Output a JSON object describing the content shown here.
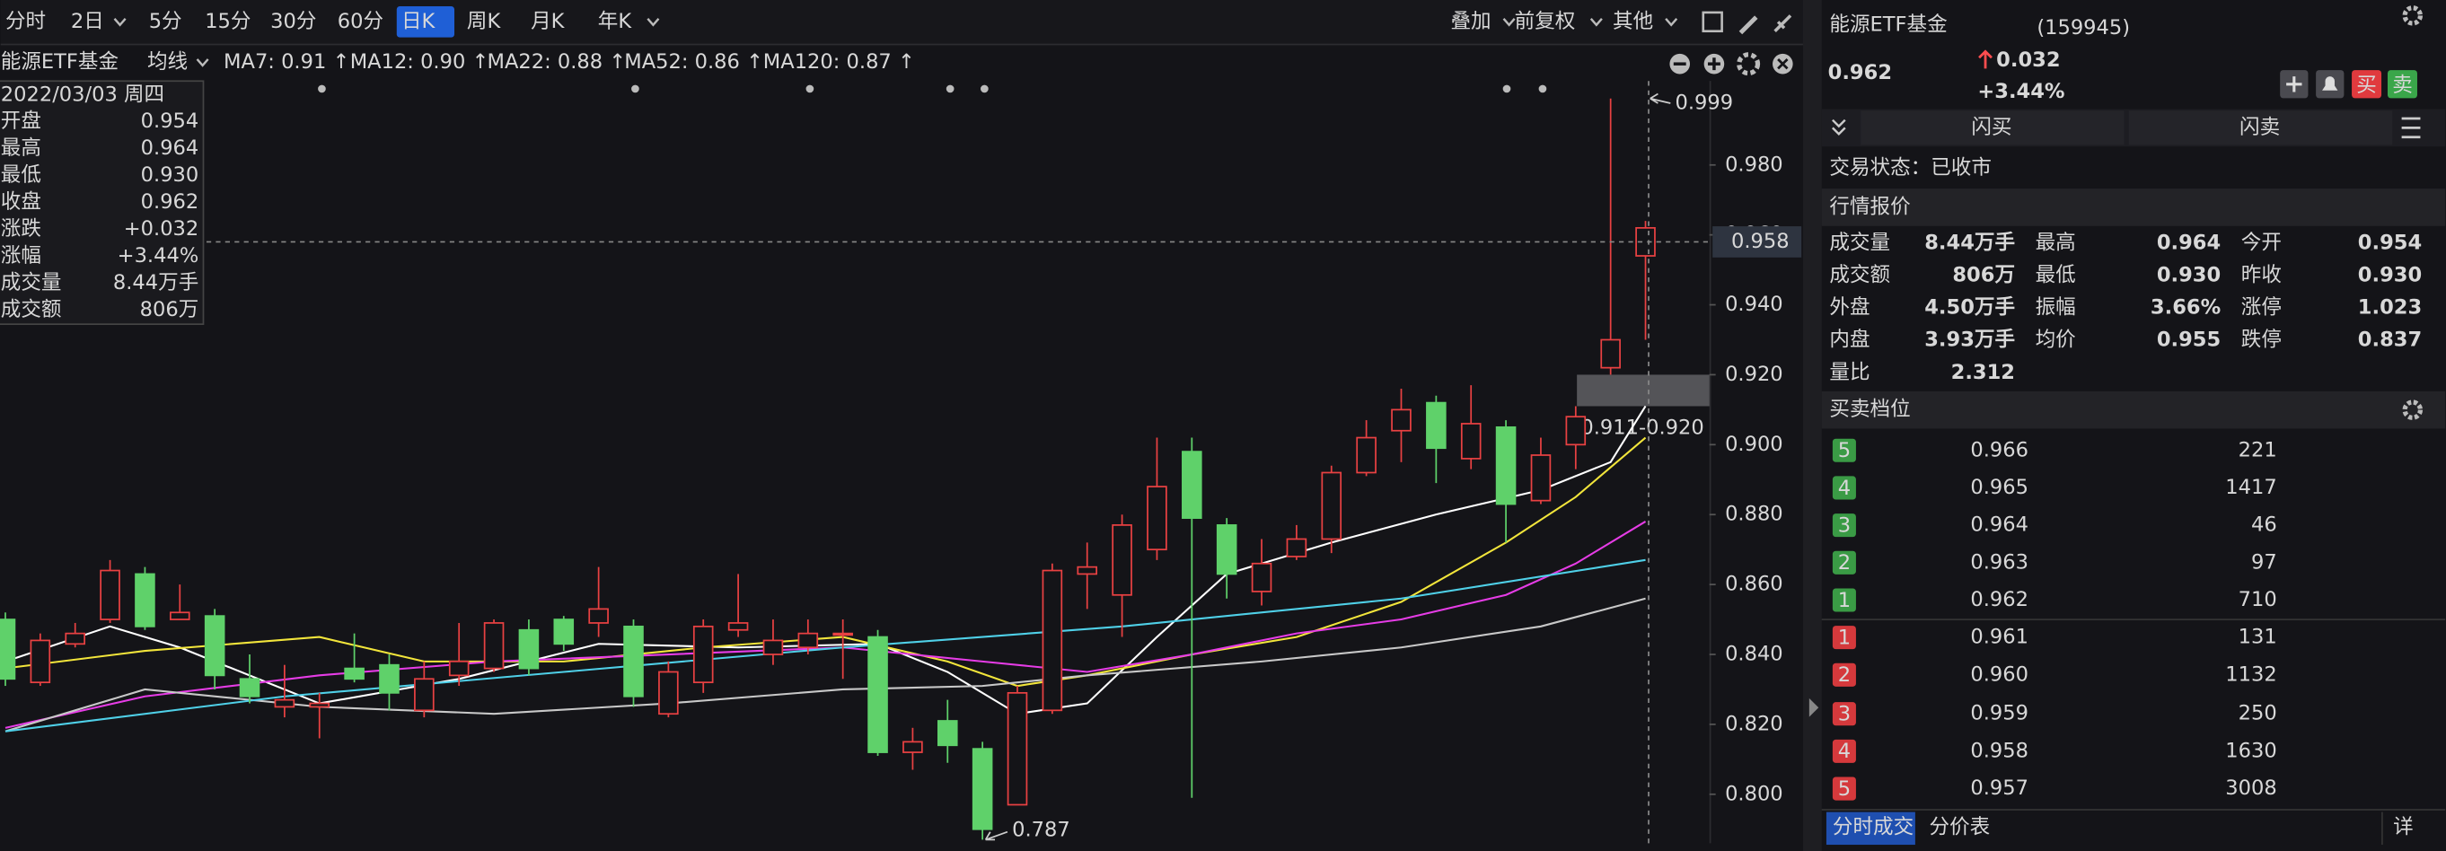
{
  "toolbar": {
    "tabs": [
      "分时",
      "2日",
      "5分",
      "15分",
      "30分",
      "60分",
      "日K",
      "周K",
      "月K",
      "年K"
    ],
    "selected": 6,
    "dropdown_tabs": [
      1,
      9
    ],
    "right": [
      "叠加",
      "前复权",
      "其他"
    ]
  },
  "chart": {
    "name": "能源ETF基金",
    "ma_mode": "均线",
    "ylim": [
      0.786,
      1.004
    ],
    "yticks": [
      {
        "value": 0.8,
        "label": "0.800"
      },
      {
        "value": 0.82,
        "label": "0.820"
      },
      {
        "value": 0.84,
        "label": "0.840"
      },
      {
        "value": 0.86,
        "label": "0.860"
      },
      {
        "value": 0.88,
        "label": "0.880"
      },
      {
        "value": 0.9,
        "label": "0.900"
      },
      {
        "value": 0.92,
        "label": "0.920"
      },
      {
        "value": 0.94,
        "label": "0.940"
      },
      {
        "value": 0.96,
        "label": "0.960"
      },
      {
        "value": 0.98,
        "label": "0.980"
      }
    ],
    "crosshair": {
      "value": 0.958,
      "label": "0.958"
    },
    "range": {
      "low": 0.911,
      "high": 0.92,
      "label": "0.911-0.920"
    },
    "high_mark": {
      "index": 47,
      "value": 0.999
    },
    "low_mark": {
      "index": 28,
      "value": 0.787
    },
    "up_color": "#e84142",
    "down_color": "#5fd16a",
    "candles": [
      {
        "open": 0.85,
        "high": 0.852,
        "low": 0.831,
        "close": 0.833
      },
      {
        "open": 0.832,
        "high": 0.846,
        "low": 0.831,
        "close": 0.844
      },
      {
        "open": 0.843,
        "high": 0.849,
        "low": 0.842,
        "close": 0.846
      },
      {
        "open": 0.85,
        "high": 0.867,
        "low": 0.849,
        "close": 0.864
      },
      {
        "open": 0.863,
        "high": 0.865,
        "low": 0.847,
        "close": 0.848
      },
      {
        "open": 0.85,
        "high": 0.86,
        "low": 0.85,
        "close": 0.852
      },
      {
        "open": 0.851,
        "high": 0.853,
        "low": 0.83,
        "close": 0.834
      },
      {
        "open": 0.833,
        "high": 0.84,
        "low": 0.826,
        "close": 0.828
      },
      {
        "open": 0.825,
        "high": 0.837,
        "low": 0.822,
        "close": 0.827
      },
      {
        "open": 0.825,
        "high": 0.829,
        "low": 0.816,
        "close": 0.826
      },
      {
        "open": 0.836,
        "high": 0.846,
        "low": 0.832,
        "close": 0.833
      },
      {
        "open": 0.837,
        "high": 0.84,
        "low": 0.824,
        "close": 0.829
      },
      {
        "open": 0.824,
        "high": 0.838,
        "low": 0.822,
        "close": 0.833
      },
      {
        "open": 0.834,
        "high": 0.849,
        "low": 0.831,
        "close": 0.838
      },
      {
        "open": 0.836,
        "high": 0.85,
        "low": 0.835,
        "close": 0.849
      },
      {
        "open": 0.847,
        "high": 0.85,
        "low": 0.834,
        "close": 0.836
      },
      {
        "open": 0.85,
        "high": 0.851,
        "low": 0.841,
        "close": 0.843
      },
      {
        "open": 0.849,
        "high": 0.865,
        "low": 0.845,
        "close": 0.853
      },
      {
        "open": 0.848,
        "high": 0.85,
        "low": 0.825,
        "close": 0.828
      },
      {
        "open": 0.823,
        "high": 0.838,
        "low": 0.822,
        "close": 0.835
      },
      {
        "open": 0.832,
        "high": 0.85,
        "low": 0.829,
        "close": 0.848
      },
      {
        "open": 0.847,
        "high": 0.863,
        "low": 0.845,
        "close": 0.849
      },
      {
        "open": 0.84,
        "high": 0.85,
        "low": 0.837,
        "close": 0.844
      },
      {
        "open": 0.842,
        "high": 0.85,
        "low": 0.84,
        "close": 0.846
      },
      {
        "open": 0.846,
        "high": 0.85,
        "low": 0.833,
        "close": 0.846
      },
      {
        "open": 0.845,
        "high": 0.847,
        "low": 0.811,
        "close": 0.812
      },
      {
        "open": 0.812,
        "high": 0.819,
        "low": 0.807,
        "close": 0.815
      },
      {
        "open": 0.821,
        "high": 0.827,
        "low": 0.809,
        "close": 0.814
      },
      {
        "open": 0.813,
        "high": 0.815,
        "low": 0.787,
        "close": 0.79
      },
      {
        "open": 0.797,
        "high": 0.831,
        "low": 0.797,
        "close": 0.829
      },
      {
        "open": 0.824,
        "high": 0.866,
        "low": 0.823,
        "close": 0.864
      },
      {
        "open": 0.863,
        "high": 0.872,
        "low": 0.853,
        "close": 0.865
      },
      {
        "open": 0.857,
        "high": 0.88,
        "low": 0.845,
        "close": 0.877
      },
      {
        "open": 0.87,
        "high": 0.902,
        "low": 0.867,
        "close": 0.888
      },
      {
        "open": 0.898,
        "high": 0.902,
        "low": 0.799,
        "close": 0.879
      },
      {
        "open": 0.877,
        "high": 0.879,
        "low": 0.856,
        "close": 0.863
      },
      {
        "open": 0.858,
        "high": 0.873,
        "low": 0.854,
        "close": 0.866
      },
      {
        "open": 0.868,
        "high": 0.877,
        "low": 0.867,
        "close": 0.873
      },
      {
        "open": 0.873,
        "high": 0.894,
        "low": 0.869,
        "close": 0.892
      },
      {
        "open": 0.892,
        "high": 0.907,
        "low": 0.891,
        "close": 0.902
      },
      {
        "open": 0.904,
        "high": 0.916,
        "low": 0.895,
        "close": 0.91
      },
      {
        "open": 0.912,
        "high": 0.914,
        "low": 0.889,
        "close": 0.899
      },
      {
        "open": 0.896,
        "high": 0.917,
        "low": 0.893,
        "close": 0.906
      },
      {
        "open": 0.905,
        "high": 0.907,
        "low": 0.872,
        "close": 0.883
      },
      {
        "open": 0.884,
        "high": 0.902,
        "low": 0.883,
        "close": 0.897
      },
      {
        "open": 0.9,
        "high": 0.911,
        "low": 0.893,
        "close": 0.908
      },
      {
        "open": 0.922,
        "high": 0.999,
        "low": 0.92,
        "close": 0.93
      },
      {
        "open": 0.954,
        "high": 0.964,
        "low": 0.93,
        "close": 0.962
      }
    ],
    "ma": [
      {
        "label": "MA7: 0.91 ↑",
        "color": "#ffffff",
        "x": [
          0,
          3,
          5,
          9,
          13,
          17,
          21,
          25,
          27,
          29,
          31,
          33,
          35,
          38,
          41,
          44,
          46,
          47
        ],
        "values": [
          0.838,
          0.848,
          0.842,
          0.826,
          0.833,
          0.843,
          0.842,
          0.843,
          0.835,
          0.823,
          0.826,
          0.845,
          0.863,
          0.872,
          0.88,
          0.887,
          0.895,
          0.911
        ]
      },
      {
        "label": "MA12: 0.90 ↑",
        "color": "#f2e53b",
        "x": [
          0,
          4,
          9,
          12,
          16,
          20,
          24,
          27,
          29,
          31,
          34,
          37,
          40,
          43,
          45,
          47
        ],
        "values": [
          0.836,
          0.841,
          0.845,
          0.838,
          0.838,
          0.842,
          0.845,
          0.838,
          0.831,
          0.834,
          0.84,
          0.845,
          0.855,
          0.872,
          0.885,
          0.902
        ]
      },
      {
        "label": "MA22: 0.88 ↑",
        "color": "#e63ce6",
        "x": [
          0,
          4,
          9,
          14,
          19,
          24,
          28,
          31,
          34,
          37,
          40,
          43,
          45,
          47
        ],
        "values": [
          0.819,
          0.828,
          0.834,
          0.838,
          0.84,
          0.842,
          0.838,
          0.835,
          0.84,
          0.846,
          0.85,
          0.857,
          0.866,
          0.878
        ]
      },
      {
        "label": "MA52: 0.86 ↑",
        "color": "#c8c8c8",
        "x": [
          0,
          4,
          9,
          14,
          19,
          24,
          28,
          31,
          36,
          40,
          44,
          47
        ],
        "values": [
          0.818,
          0.83,
          0.825,
          0.823,
          0.826,
          0.83,
          0.831,
          0.834,
          0.838,
          0.842,
          0.848,
          0.856
        ]
      },
      {
        "label": "MA120: 0.87 ↑",
        "color": "#4fd0e8",
        "x": [
          0,
          8,
          16,
          24,
          32,
          40,
          47
        ],
        "values": [
          0.818,
          0.828,
          0.835,
          0.842,
          0.848,
          0.856,
          0.867
        ]
      }
    ],
    "tooltip": {
      "date": "2022/03/03 周四",
      "rows": [
        {
          "label": "开盘",
          "value": "0.954",
          "color": "#e84142"
        },
        {
          "label": "最高",
          "value": "0.964",
          "color": "#e84142"
        },
        {
          "label": "最低",
          "value": "0.930",
          "color": "#cfcfcf"
        },
        {
          "label": "收盘",
          "value": "0.962",
          "color": "#e84142"
        },
        {
          "label": "涨跌",
          "value": "+0.032",
          "color": "#e84142"
        },
        {
          "label": "涨幅",
          "value": "+3.44%",
          "color": "#e84142"
        },
        {
          "label": "成交量",
          "value": "8.44万手",
          "color": "#cfcfcf"
        },
        {
          "label": "成交额",
          "value": "806万",
          "color": "#cfcfcf"
        }
      ]
    }
  },
  "quote": {
    "name": "能源ETF基金",
    "code": "(159945)",
    "price": "0.962",
    "change": "0.032",
    "change_pct": "+3.44%",
    "buy_button": "买",
    "sell_button": "卖",
    "flash_buy": "闪买",
    "flash_sell": "闪卖",
    "status": "交易状态：已收市",
    "stats_title": "行情报价",
    "stats": [
      [
        {
          "text": "成交量"
        },
        {
          "text": "8.44万手",
          "color": "#ffffff"
        },
        {
          "text": "最高"
        },
        {
          "text": "0.964",
          "color": "#ff4d4f"
        },
        {
          "text": "今开"
        },
        {
          "text": "0.954",
          "color": "#ff4d4f"
        }
      ],
      [
        {
          "text": "成交额"
        },
        {
          "text": "806万",
          "color": "#ffffff"
        },
        {
          "text": "最低"
        },
        {
          "text": "0.930",
          "color": "#ffffff"
        },
        {
          "text": "昨收"
        },
        {
          "text": "0.930",
          "color": "#ffffff"
        }
      ],
      [
        {
          "text": "外盘"
        },
        {
          "text": "4.50万手",
          "color": "#ff4d4f"
        },
        {
          "text": "振幅"
        },
        {
          "text": "3.66%",
          "color": "#ffffff"
        },
        {
          "text": "涨停"
        },
        {
          "text": "1.023",
          "color": "#ff4d4f"
        }
      ],
      [
        {
          "text": "内盘"
        },
        {
          "text": "3.93万手",
          "color": "#5fd16a"
        },
        {
          "text": "均价"
        },
        {
          "text": "0.955",
          "color": "#ff4d4f"
        },
        {
          "text": "跌停"
        },
        {
          "text": "0.837",
          "color": "#5fd16a"
        }
      ],
      [
        {
          "text": "量比"
        },
        {
          "text": "2.312",
          "color": "#ffffff"
        }
      ]
    ],
    "book_title": "买卖档位",
    "asks": [
      {
        "level": "5",
        "price": "0.966",
        "volume": "221"
      },
      {
        "level": "4",
        "price": "0.965",
        "volume": "1417"
      },
      {
        "level": "3",
        "price": "0.964",
        "volume": "46"
      },
      {
        "level": "2",
        "price": "0.963",
        "volume": "97"
      },
      {
        "level": "1",
        "price": "0.962",
        "volume": "710"
      }
    ],
    "bids": [
      {
        "level": "1",
        "price": "0.961",
        "volume": "131"
      },
      {
        "level": "2",
        "price": "0.960",
        "volume": "1132"
      },
      {
        "level": "3",
        "price": "0.959",
        "volume": "250"
      },
      {
        "level": "4",
        "price": "0.958",
        "volume": "1630"
      },
      {
        "level": "5",
        "price": "0.957",
        "volume": "3008"
      }
    ],
    "bottom_tabs": [
      "分时成交",
      "分价表"
    ],
    "detail": "详"
  }
}
